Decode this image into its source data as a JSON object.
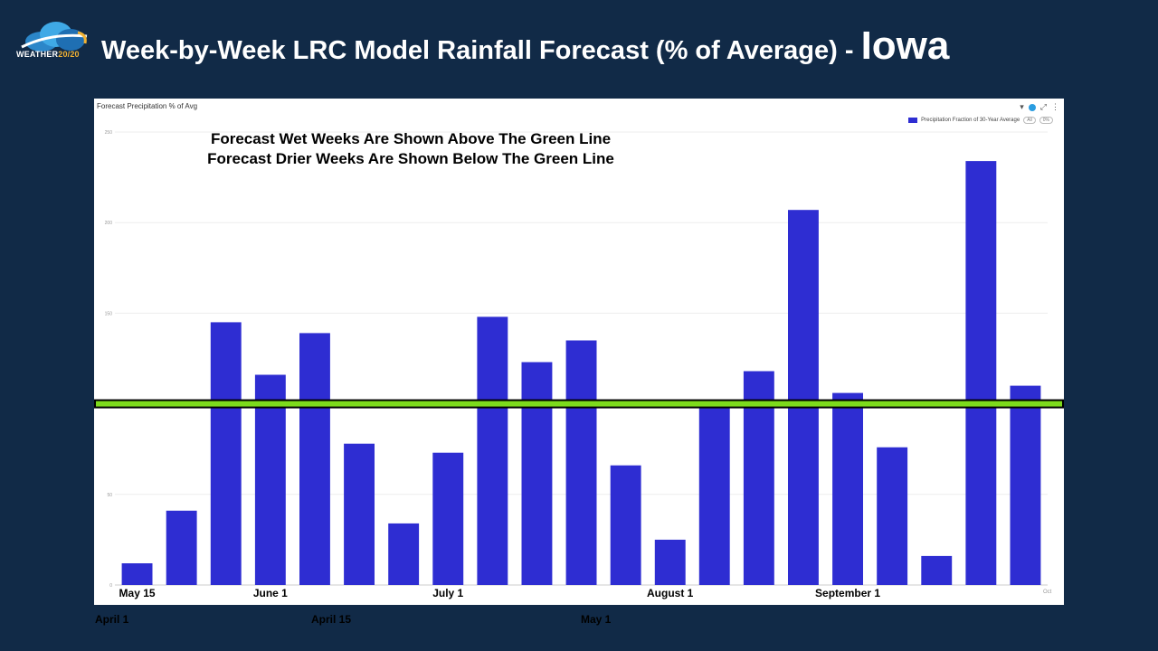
{
  "logo": {
    "text_main": "WEATHER",
    "text_accent": "20/20"
  },
  "slide": {
    "title": "Week-by-Week LRC Model Rainfall Forecast (% of Average) - ",
    "state": "Iowa"
  },
  "panel": {
    "title": "Forecast Precipitation % of Avg",
    "icons": [
      "filter-icon",
      "info-icon",
      "expand-icon",
      "more-icon"
    ]
  },
  "annotations": [
    "Forecast Wet Weeks Are Shown Above The Green Line",
    "Forecast Drier Weeks Are Shown Below The Green Line"
  ],
  "colors": {
    "bar": "#2e2dd2",
    "reference_line": "#7ddb1c",
    "background": "#112a47"
  },
  "chart_data": {
    "type": "bar",
    "title": "Forecast Precipitation % of Avg",
    "series": [
      {
        "name": "Precipitation Fraction of 30-Year Average",
        "values": [
          12,
          41,
          145,
          116,
          139,
          78,
          34,
          73,
          148,
          123,
          135,
          66,
          25,
          99,
          118,
          207,
          106,
          76,
          16,
          234,
          110
        ]
      }
    ],
    "reference_line": 100,
    "ylim": [
      0,
      250
    ],
    "yticks": [
      0,
      50,
      100,
      150,
      200,
      250
    ],
    "grid": true,
    "legend": "top-right",
    "legend_buttons": [
      "All",
      "0%"
    ],
    "x_axis_faint_label": "Oct",
    "x_tick_labels": [
      {
        "label": "May 15",
        "bar_index": 0
      },
      {
        "label": "June 1",
        "bar_index": 3
      },
      {
        "label": "July 1",
        "bar_index": 7
      },
      {
        "label": "August 1",
        "bar_index": 12
      },
      {
        "label": "September 1",
        "bar_index": 16
      }
    ],
    "secondary_labels": [
      {
        "label": "April 1"
      },
      {
        "label": "April 15"
      },
      {
        "label": "May 1"
      }
    ]
  }
}
